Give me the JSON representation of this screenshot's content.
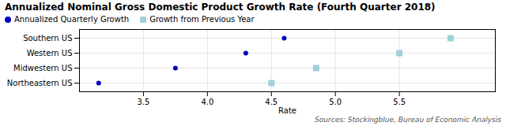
{
  "chart_data": {
    "type": "scatter",
    "title": "Annualized Nominal Gross Domestic Product Growth Rate (Fourth Quarter 2018)",
    "xlabel": "Rate",
    "caption": "Sources: Stockingblue, Bureau of Economic Analysis",
    "categories": [
      "Southern US",
      "Western US",
      "Midwestern US",
      "Northeastern US"
    ],
    "series": [
      {
        "name": "Annualized Quarterly Growth",
        "color": "#0000bb",
        "marker": "circle",
        "values": [
          4.6,
          4.3,
          3.75,
          3.15
        ]
      },
      {
        "name": "Growth from Previous Year",
        "color": "#a0d0d8",
        "marker": "square",
        "values": [
          5.9,
          5.5,
          4.85,
          4.5
        ]
      }
    ],
    "xlim": [
      3.0,
      6.25
    ],
    "xticks": [
      3.5,
      {
        "value": 4.0,
        "label": "4.0"
      },
      4.5,
      {
        "value": 5.0,
        "label": "5.0"
      },
      5.5
    ],
    "grid": true,
    "legend": "upper left"
  }
}
